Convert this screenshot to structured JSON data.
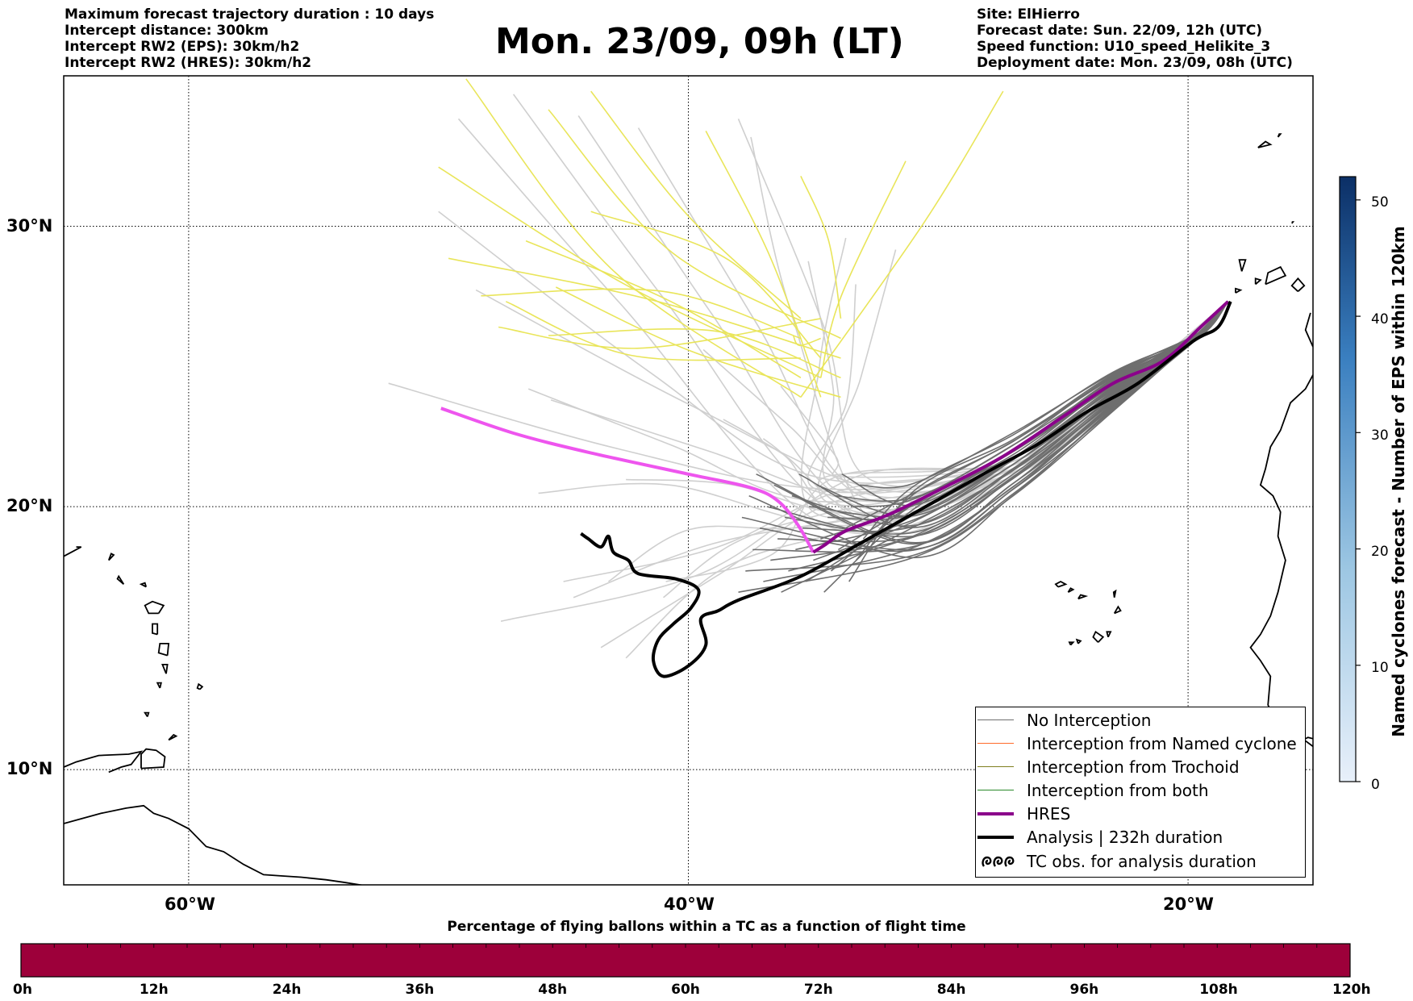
{
  "header": {
    "left_lines": [
      "Maximum forecast trajectory duration : 10 days",
      "Intercept distance: 300km",
      "Intercept RW2 (EPS):  30km/h2",
      "Intercept RW2 (HRES): 30km/h2"
    ],
    "title": "Mon. 23/09, 09h (LT)",
    "right_lines": [
      "Site: ElHierro",
      "Forecast date: Sun. 22/09, 12h (UTC)",
      "Speed function: U10_speed_Helikite_3",
      "Deployment date: Mon. 23/09, 08h (UTC)"
    ]
  },
  "map": {
    "lon_range": [
      -65,
      -15
    ],
    "lat_range": [
      5.5,
      35
    ],
    "lat_ticks": [
      {
        "value": 30,
        "label": "30°N"
      },
      {
        "value": 20,
        "label": "20°N"
      },
      {
        "value": 10,
        "label": "10°N"
      }
    ],
    "lon_ticks": [
      {
        "value": -60,
        "label": "60°W"
      },
      {
        "value": -40,
        "label": "40°W"
      },
      {
        "value": -20,
        "label": "20°W"
      }
    ],
    "grid": true,
    "colors": {
      "no_interception": "#6e6e6e",
      "named_cyclone": "#ff6a2a",
      "trochoid": "#7f7f1f",
      "both": "#2a8a2a",
      "hres": "#8b008b",
      "hres_nointercept": "#ee55ee",
      "analysis": "#000000",
      "faded": "#cfcfcf",
      "trochoid_faded": "#e9e55a"
    },
    "hres_track": [
      [
        -18.4,
        27.4
      ],
      [
        -19.5,
        26.5
      ],
      [
        -21,
        25.3
      ],
      [
        -23,
        24.5
      ],
      [
        -25,
        23.3
      ],
      [
        -27.5,
        21.8
      ],
      [
        -30,
        20.6
      ],
      [
        -32,
        19.7
      ],
      [
        -33.7,
        19.1
      ],
      [
        -34.5,
        18.6
      ],
      [
        -35,
        18.3
      ],
      [
        -35.6,
        19.3
      ],
      [
        -36.4,
        20.2
      ],
      [
        -37.5,
        20.7
      ],
      [
        -40,
        21.2
      ],
      [
        -44,
        22
      ],
      [
        -47,
        22.7
      ],
      [
        -49.9,
        23.6
      ]
    ],
    "analysis_track": [
      [
        -18.3,
        27.4
      ],
      [
        -18.8,
        26.5
      ],
      [
        -19.8,
        26
      ],
      [
        -22,
        24.5
      ],
      [
        -24,
        23.5
      ],
      [
        -26,
        22.3
      ],
      [
        -28,
        21.3
      ],
      [
        -30.5,
        20
      ],
      [
        -33,
        18.7
      ],
      [
        -35.5,
        17.4
      ],
      [
        -38,
        16.5
      ],
      [
        -38.8,
        16.1
      ],
      [
        -39.5,
        15.8
      ],
      [
        -39.3,
        14.8
      ],
      [
        -40,
        14
      ],
      [
        -41,
        13.6
      ],
      [
        -41.4,
        14.2
      ],
      [
        -41.2,
        15
      ],
      [
        -40.6,
        15.6
      ],
      [
        -39.9,
        16.2
      ],
      [
        -39.6,
        16.9
      ],
      [
        -40.5,
        17.3
      ],
      [
        -42,
        17.5
      ],
      [
        -42.4,
        18
      ],
      [
        -43,
        18.3
      ],
      [
        -43.2,
        18.9
      ],
      [
        -43.5,
        18.5
      ],
      [
        -44,
        18.8
      ],
      [
        -44.3,
        19.0
      ]
    ],
    "track_endpoints": [
      [
        -43.2,
        17.2
      ],
      [
        -41,
        16.6
      ],
      [
        -43.5,
        14.7
      ],
      [
        -45,
        17.2
      ],
      [
        -47.5,
        15.7
      ],
      [
        -42.5,
        14.3
      ],
      [
        -44.6,
        16.6
      ],
      [
        -46.4,
        24.3
      ],
      [
        -52,
        24.5
      ],
      [
        -40.9,
        17.2
      ],
      [
        -46,
        20.5
      ],
      [
        -42.5,
        21
      ],
      [
        -45.5,
        23.9
      ],
      [
        -48.5,
        27.8
      ],
      [
        -50,
        30.5
      ],
      [
        -49.2,
        33.6
      ],
      [
        -47,
        34.4
      ],
      [
        -44.4,
        33.7
      ],
      [
        -42,
        33.3
      ],
      [
        -38,
        33.6
      ],
      [
        -37.5,
        33
      ],
      [
        -33.7,
        29.6
      ],
      [
        -31.7,
        29.2
      ],
      [
        -35.2,
        28.8
      ],
      [
        -36.3,
        24.4
      ],
      [
        -37,
        22.5
      ],
      [
        -38.6,
        23.2
      ],
      [
        -39.4,
        25.7
      ],
      [
        -33.3,
        28
      ],
      [
        -34.1,
        20.1
      ]
    ],
    "trochoid_endpoints": [
      [
        -48.9,
        34.9
      ],
      [
        -50,
        32
      ],
      [
        -49.6,
        28.9
      ],
      [
        -48.3,
        27.6
      ],
      [
        -47.6,
        26.5
      ],
      [
        -45.3,
        27.9
      ],
      [
        -46.5,
        29.5
      ],
      [
        -43.9,
        30.5
      ],
      [
        -45.6,
        33.9
      ],
      [
        -43.9,
        34.5
      ],
      [
        -39.3,
        33.2
      ],
      [
        -45.6,
        26.2
      ],
      [
        -47.3,
        27.4
      ],
      [
        -35.8,
        26.2
      ],
      [
        -35.5,
        31.7
      ],
      [
        -27.4,
        34.5
      ],
      [
        -31.3,
        32.2
      ]
    ]
  },
  "legend": {
    "items": [
      {
        "label": "No Interception",
        "type": "thin",
        "color": "#6e6e6e"
      },
      {
        "label": "Interception from Named cyclone",
        "type": "thin",
        "color": "#ff6a2a"
      },
      {
        "label": "Interception from Trochoid",
        "type": "thin",
        "color": "#7f7f1f"
      },
      {
        "label": "Interception from both",
        "type": "thin",
        "color": "#2a8a2a"
      },
      {
        "label": "HRES",
        "type": "thick",
        "color": "#8b008b"
      },
      {
        "label": "Analysis | 232h duration",
        "type": "thick",
        "color": "#000000"
      },
      {
        "label": "TC obs. for analysis duration",
        "type": "loops",
        "color": "#000000"
      }
    ]
  },
  "colorbar_right": {
    "label": "Named cyclones forecast - Number of EPS within 120km",
    "min": 0,
    "max": 52,
    "ticks": [
      0,
      10,
      20,
      30,
      40,
      50
    ],
    "colors": [
      "#e8f0fa",
      "#0b2f66"
    ]
  },
  "colorbar_bottom": {
    "title": "Percentage of flying ballons within a TC as a function of flight time",
    "ticks": [
      "0h",
      "12h",
      "24h",
      "36h",
      "48h",
      "60h",
      "72h",
      "84h",
      "96h",
      "108h",
      "120h"
    ],
    "fill_color": "#9d003a",
    "percent": 0
  }
}
